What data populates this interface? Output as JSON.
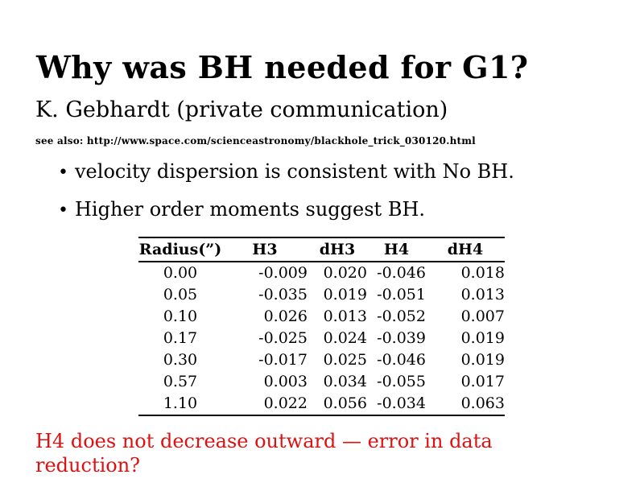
{
  "slide": {
    "title": "Why was BH needed for G1?",
    "subtitle": "K. Gebhardt (private communication)",
    "see_also": "see also: http://www.space.com/scienceastronomy/blackhole_trick_030120.html",
    "bullet_glyph": "•",
    "bullets": [
      "velocity dispersion is consistent with No BH.",
      "Higher order moments suggest BH."
    ],
    "footnote": "H4 does not decrease outward — error in data reduction?"
  },
  "table": {
    "headers": [
      "Radius(”)",
      "H3",
      "dH3",
      "H4",
      "dH4"
    ],
    "rows": [
      [
        "0.00",
        "-0.009",
        "0.020",
        "-0.046",
        "0.018"
      ],
      [
        "0.05",
        "-0.035",
        "0.019",
        "-0.051",
        "0.013"
      ],
      [
        "0.10",
        "0.026",
        "0.013",
        "-0.052",
        "0.007"
      ],
      [
        "0.17",
        "-0.025",
        "0.024",
        "-0.039",
        "0.019"
      ],
      [
        "0.30",
        "-0.017",
        "0.025",
        "-0.046",
        "0.019"
      ],
      [
        "0.57",
        "0.003",
        "0.034",
        "-0.055",
        "0.017"
      ],
      [
        "1.10",
        "0.022",
        "0.056",
        "-0.034",
        "0.063"
      ]
    ]
  },
  "colors": {
    "text": "#000000",
    "warning_text": "#dd1111",
    "background": "#ffffff",
    "table_rule": "#000000"
  }
}
